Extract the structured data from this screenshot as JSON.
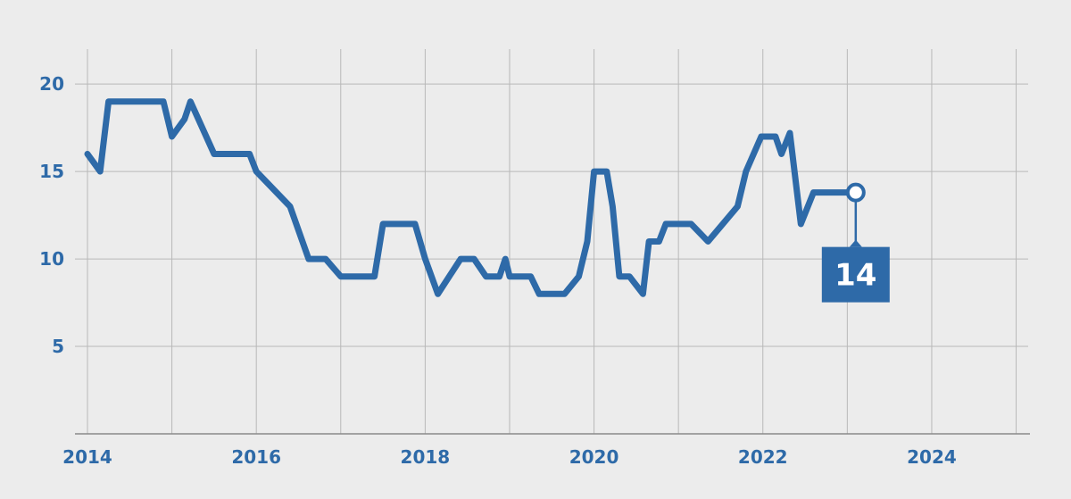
{
  "chart_data": {
    "type": "line",
    "title": "",
    "xlabel": "",
    "ylabel": "",
    "xlim": [
      2014,
      2025.1
    ],
    "ylim": [
      0,
      22
    ],
    "x_ticks": [
      2014,
      2016,
      2018,
      2020,
      2022,
      2024
    ],
    "x_tick_labels": [
      "2014",
      "2016",
      "2018",
      "2020",
      "2022",
      "2024"
    ],
    "y_ticks": [
      5,
      10,
      15,
      20
    ],
    "y_tick_labels": [
      "5",
      "10",
      "15",
      "20"
    ],
    "grid": true,
    "line_color": "#2e6aa8",
    "series": [
      {
        "name": "",
        "x": [
          2014.0,
          2014.15,
          2014.25,
          2014.5,
          2014.75,
          2014.9,
          2015.0,
          2015.15,
          2015.22,
          2015.5,
          2015.7,
          2015.92,
          2016.0,
          2016.4,
          2016.62,
          2016.82,
          2017.0,
          2017.4,
          2017.5,
          2017.88,
          2018.0,
          2018.15,
          2018.42,
          2018.58,
          2018.72,
          2018.88,
          2018.95,
          2019.0,
          2019.25,
          2019.35,
          2019.65,
          2019.82,
          2019.92,
          2020.0,
          2020.15,
          2020.22,
          2020.3,
          2020.42,
          2020.58,
          2020.65,
          2020.77,
          2020.85,
          2021.15,
          2021.35,
          2021.7,
          2021.8,
          2021.98,
          2022.15,
          2022.22,
          2022.32,
          2022.45,
          2022.6,
          2022.75,
          2023.1
        ],
        "y": [
          16,
          15,
          19,
          19,
          19,
          19,
          17,
          18,
          19,
          16,
          16,
          16,
          15,
          13,
          10,
          10,
          9,
          9,
          12,
          12,
          10,
          8,
          10,
          10,
          9,
          9,
          10,
          9,
          9,
          8,
          8,
          9,
          11,
          15,
          15,
          13,
          9,
          9,
          8,
          11,
          11,
          12,
          12,
          11,
          13,
          15,
          17,
          17,
          16,
          17.2,
          12,
          13.8,
          13.8,
          13.8
        ]
      }
    ],
    "annotations": [
      {
        "text": "14",
        "x": 2023.1,
        "y": 13.8
      }
    ]
  }
}
